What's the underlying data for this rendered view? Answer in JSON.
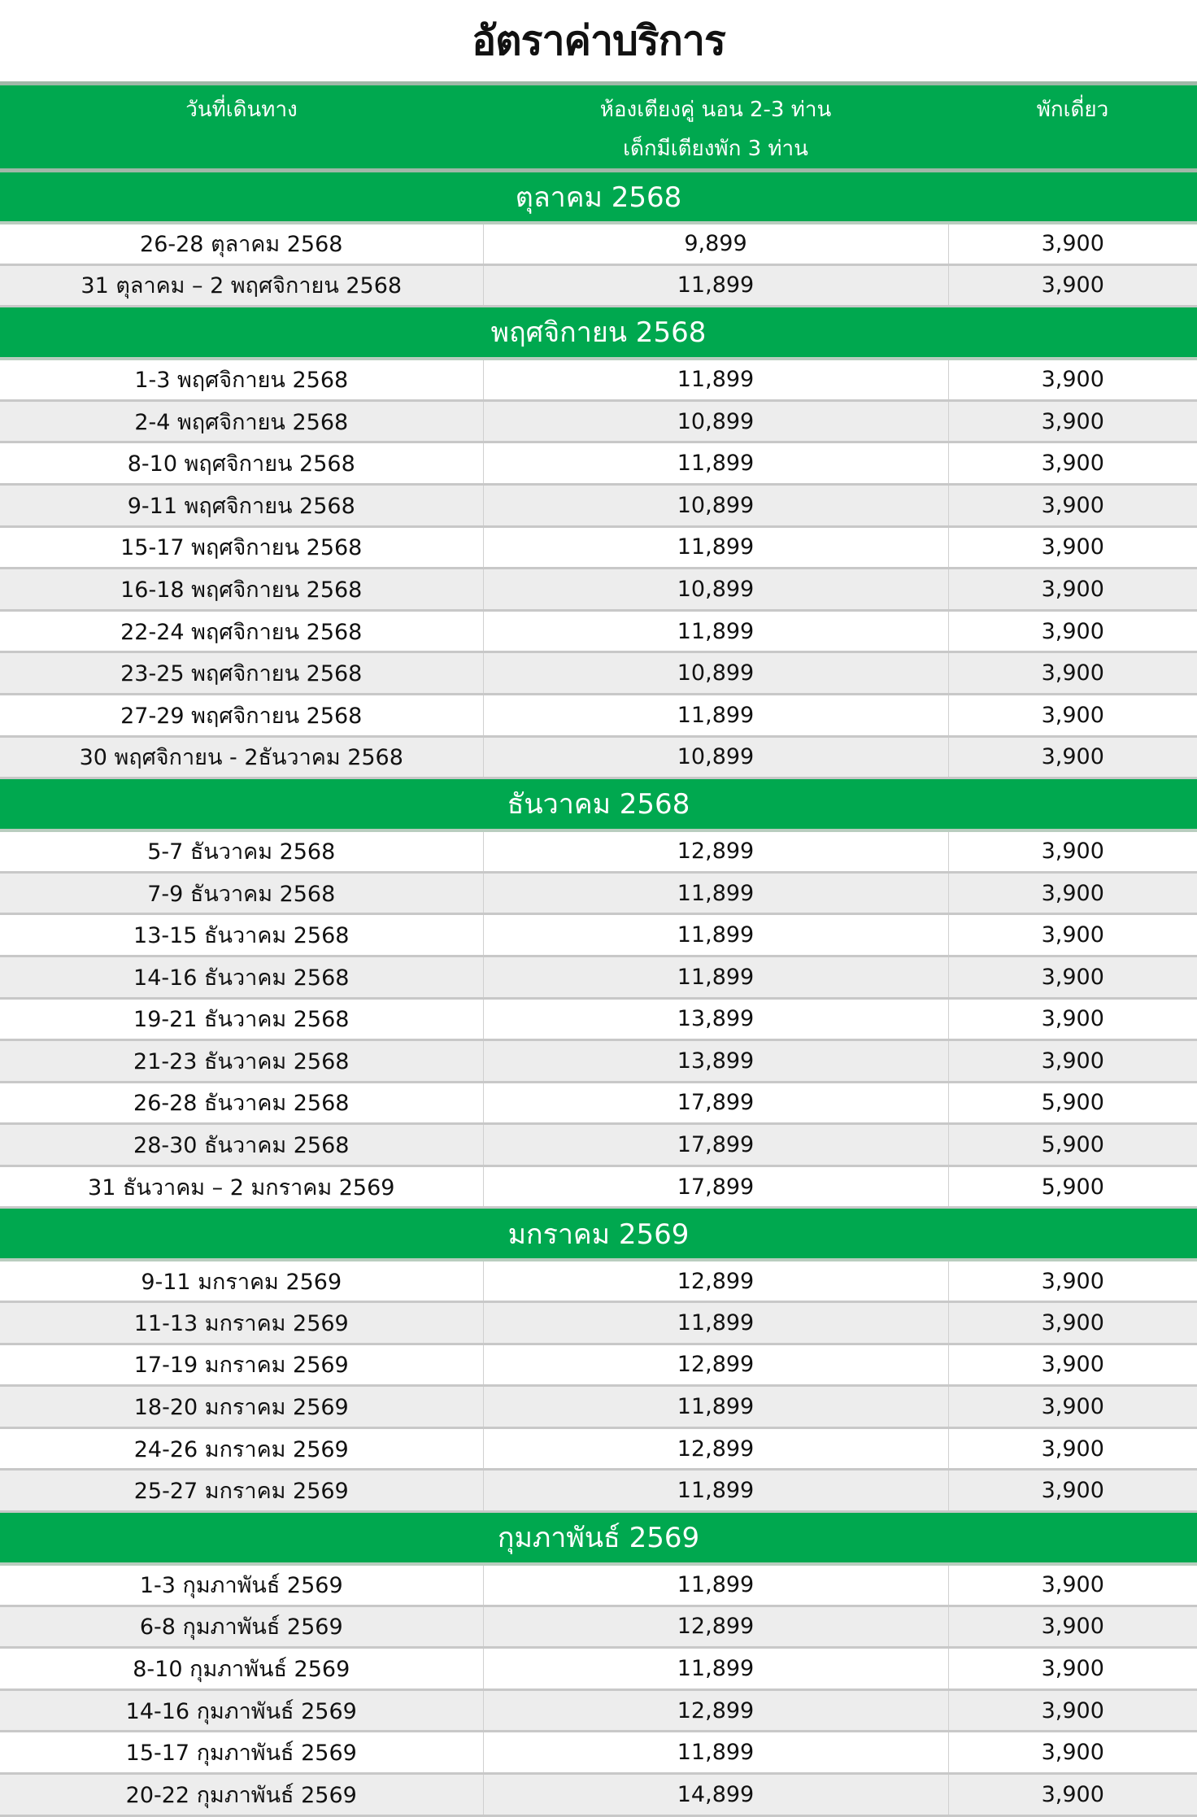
{
  "title": "อัตราค่าบริการ",
  "header": {
    "date": "วันที่เดินทาง",
    "twin_line1": "ห้องเตียงคู่ นอน 2-3 ท่าน",
    "twin_line2": "เด็กมีเตียงพัก 3 ท่าน",
    "single": "พักเดี่ยว"
  },
  "colors": {
    "header_green": "#00a84f",
    "alt_row": "#ededed"
  },
  "sections": [
    {
      "month": "ตุลาคม 2568",
      "rows": [
        [
          "26-28 ตุลาคม 2568",
          "9,899",
          "3,900"
        ],
        [
          "31 ตุลาคม – 2 พฤศจิกายน 2568",
          "11,899",
          "3,900"
        ]
      ]
    },
    {
      "month": "พฤศจิกายน 2568",
      "rows": [
        [
          "1-3 พฤศจิกายน 2568",
          "11,899",
          "3,900"
        ],
        [
          "2-4 พฤศจิกายน 2568",
          "10,899",
          "3,900"
        ],
        [
          "8-10 พฤศจิกายน 2568",
          "11,899",
          "3,900"
        ],
        [
          "9-11 พฤศจิกายน 2568",
          "10,899",
          "3,900"
        ],
        [
          "15-17 พฤศจิกายน 2568",
          "11,899",
          "3,900"
        ],
        [
          "16-18 พฤศจิกายน 2568",
          "10,899",
          "3,900"
        ],
        [
          "22-24 พฤศจิกายน 2568",
          "11,899",
          "3,900"
        ],
        [
          "23-25 พฤศจิกายน 2568",
          "10,899",
          "3,900"
        ],
        [
          "27-29 พฤศจิกายน 2568",
          "11,899",
          "3,900"
        ],
        [
          "30 พฤศจิกายน - 2ธันวาคม 2568",
          "10,899",
          "3,900"
        ]
      ]
    },
    {
      "month": "ธันวาคม 2568",
      "rows": [
        [
          "5-7 ธันวาคม 2568",
          "12,899",
          "3,900"
        ],
        [
          "7-9 ธันวาคม 2568",
          "11,899",
          "3,900"
        ],
        [
          "13-15 ธันวาคม 2568",
          "11,899",
          "3,900"
        ],
        [
          "14-16 ธันวาคม 2568",
          "11,899",
          "3,900"
        ],
        [
          "19-21 ธันวาคม 2568",
          "13,899",
          "3,900"
        ],
        [
          "21-23 ธันวาคม 2568",
          "13,899",
          "3,900"
        ],
        [
          "26-28 ธันวาคม 2568",
          "17,899",
          "5,900"
        ],
        [
          "28-30 ธันวาคม 2568",
          "17,899",
          "5,900"
        ],
        [
          "31 ธันวาคม – 2 มกราคม 2569",
          "17,899",
          "5,900"
        ]
      ]
    },
    {
      "month": "มกราคม 2569",
      "rows": [
        [
          "9-11 มกราคม 2569",
          "12,899",
          "3,900"
        ],
        [
          "11-13 มกราคม 2569",
          "11,899",
          "3,900"
        ],
        [
          "17-19 มกราคม 2569",
          "12,899",
          "3,900"
        ],
        [
          "18-20 มกราคม 2569",
          "11,899",
          "3,900"
        ],
        [
          "24-26 มกราคม 2569",
          "12,899",
          "3,900"
        ],
        [
          "25-27 มกราคม 2569",
          "11,899",
          "3,900"
        ]
      ]
    },
    {
      "month": "กุมภาพันธ์ 2569",
      "rows": [
        [
          "1-3 กุมภาพันธ์ 2569",
          "11,899",
          "3,900"
        ],
        [
          "6-8 กุมภาพันธ์ 2569",
          "12,899",
          "3,900"
        ],
        [
          "8-10 กุมภาพันธ์ 2569",
          "11,899",
          "3,900"
        ],
        [
          "14-16 กุมภาพันธ์ 2569",
          "12,899",
          "3,900"
        ],
        [
          "15-17 กุมภาพันธ์ 2569",
          "11,899",
          "3,900"
        ],
        [
          "20-22 กุมภาพันธ์ 2569",
          "14,899",
          "3,900"
        ]
      ]
    }
  ]
}
